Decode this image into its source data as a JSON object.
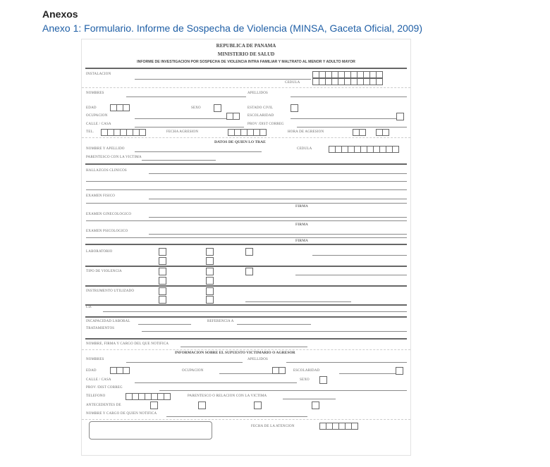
{
  "section_title": "Anexos",
  "annex_caption": "Anexo 1: Formulario. Informe de Sospecha de Violencia (MINSA, Gaceta Oficial, 2009)",
  "form": {
    "header": [
      "REPUBLICA DE PANAMA",
      "MINISTERIO DE SALUD",
      "INFORME DE INVESTIGACION POR SOSPECHA DE VIOLENCIA INTRA FAMILIAR Y MALTRATO AL MENOR Y ADULTO MAYOR"
    ],
    "victim": {
      "instalacion": "INSTALACION",
      "cedula": "CEDULA",
      "nombres": "NOMBRES",
      "apellidos": "APELLIDOS",
      "edad": "EDAD",
      "sexo": "SEXO",
      "estado_civil": "ESTADO CIVIL",
      "ocupacion": "OCUPACION",
      "escolaridad": "ESCOLARIDAD",
      "calle": "CALLE / CASA",
      "prov": "PROV /DIST CORREG",
      "tel": "TEL.",
      "fecha_agresion": "FECHA AGRESION",
      "hora_agresion": "HORA DE AGRESION"
    },
    "brought_by": {
      "title": "DATOS DE QUIEN LO TRAE",
      "nombre": "NOMBRE Y APELLIDO",
      "cedula": "CEDULA",
      "parentesco": "PARENTESCO CON LA VICTIMA"
    },
    "clinical": {
      "hallazgos": "HALLAZGOS CLINICOS",
      "fisico": "EXAMEN FISICO",
      "ginecologico": "EXAMEN GINECOLOGICO",
      "psicologico": "EXAMEN PSICOLOGICO",
      "firma": "FIRMA"
    },
    "laboratorio": "LABORATORIO",
    "tipo_violencia": "TIPO DE VIOLENCIA",
    "instrumento": "INSTRUMENTO UTILIZADO",
    "id": "I.D.",
    "incapacidad": "INCAPACIDAD LABORAL",
    "referencia": "REFERENCIA A",
    "tratamientos": "TRATAMIENTOS",
    "notifica": "NOMBRE, FIRMA Y CARGO DEL QUE NOTIFICA",
    "aggressor": {
      "title": "INFORMACION SOBRE EL SUPUESTO VICTIMARIO O AGRESOR",
      "nombres": "NOMBRES",
      "apellidos": "APELLIDOS",
      "edad": "EDAD",
      "ocupacion": "OCUPACION",
      "escolaridad": "ESCOLARIDAD",
      "calle": "CALLE / CASA",
      "sexo": "SEXO",
      "prov": "PROV /DIST CORREG",
      "telefono": "TELEFONO",
      "parentesco": "PARENTESCO O RELACION CON LA VICTIMA",
      "antecedentes": "ANTECEDENTES DE",
      "notifica": "NOMBRE Y CARGO DE QUIEN NOTIFICA"
    },
    "fecha_atencion": "FECHA DE LA ATENCION"
  }
}
